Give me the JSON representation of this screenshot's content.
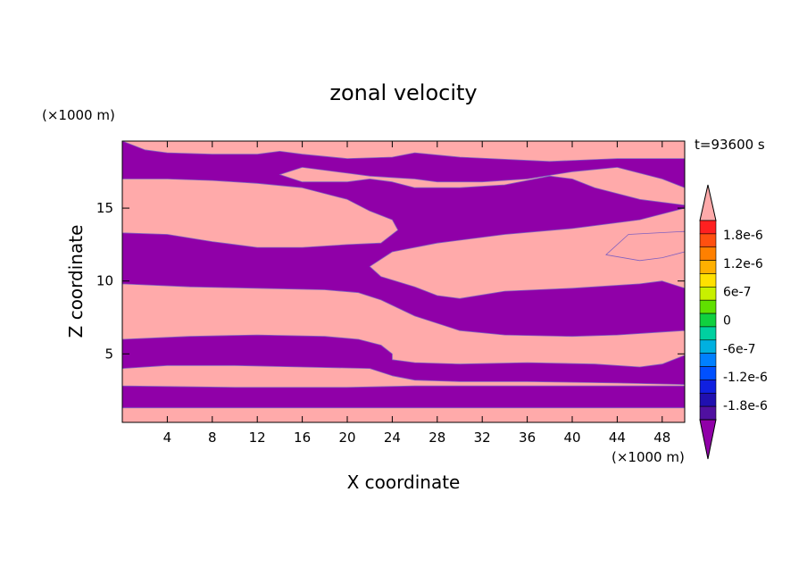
{
  "chart_data": {
    "type": "heatmap",
    "title": "zonal velocity",
    "xlabel": "X coordinate",
    "ylabel": "Z coordinate",
    "x_unit": "(×1000 m)",
    "y_unit": "(×1000 m)",
    "time_label": "t=93600 s",
    "xlim": [
      0,
      50
    ],
    "ylim": [
      0.3,
      19.6
    ],
    "x_ticks": [
      4,
      8,
      12,
      16,
      20,
      24,
      28,
      32,
      36,
      40,
      44,
      48
    ],
    "y_ticks": [
      5,
      10,
      15
    ],
    "colorbar": {
      "labels": [
        "1.8e-6",
        "1.2e-6",
        "6e-7",
        "0",
        "-6e-7",
        "-1.2e-6",
        "-1.8e-6"
      ],
      "label_values": [
        1.8e-06,
        1.2e-06,
        6e-07,
        0,
        -6e-07,
        -1.2e-06,
        -1.8e-06
      ],
      "levels_top_to_bottom": [
        "#ff2020",
        "#ff5010",
        "#ff8000",
        "#ffb000",
        "#ffe000",
        "#c8f000",
        "#60e000",
        "#10d040",
        "#00d0a0",
        "#00b0e0",
        "#0080ff",
        "#0050ff",
        "#1020e0",
        "#2010b0",
        "#5010a0"
      ],
      "over_color": "#ffaaaa",
      "under_color": "#9000a8"
    },
    "colors": {
      "positive_region": "#ffaaaa",
      "negative_region": "#9000a8"
    },
    "positive_bands": [
      {
        "top": [
          [
            0,
            1.3
          ],
          [
            50,
            1.3
          ]
        ],
        "bottom": [
          [
            0,
            0.3
          ],
          [
            50,
            0.3
          ]
        ]
      },
      {
        "top": [
          [
            0,
            4.0
          ],
          [
            4,
            4.2
          ],
          [
            10,
            4.2
          ],
          [
            16,
            4.1
          ],
          [
            22,
            4.0
          ],
          [
            24,
            3.5
          ],
          [
            26,
            3.2
          ],
          [
            30,
            3.1
          ],
          [
            36,
            3.1
          ],
          [
            44,
            3.0
          ],
          [
            50,
            2.9
          ]
        ],
        "bottom": [
          [
            0,
            2.8
          ],
          [
            10,
            2.7
          ],
          [
            20,
            2.7
          ],
          [
            26,
            2.8
          ],
          [
            34,
            2.8
          ],
          [
            44,
            2.8
          ],
          [
            50,
            2.8
          ]
        ]
      },
      {
        "top": [
          [
            0,
            9.8
          ],
          [
            6,
            9.6
          ],
          [
            12,
            9.5
          ],
          [
            18,
            9.4
          ],
          [
            21,
            9.2
          ],
          [
            23,
            8.7
          ],
          [
            26,
            7.6
          ],
          [
            30,
            6.6
          ],
          [
            34,
            6.3
          ],
          [
            40,
            6.2
          ],
          [
            44,
            6.3
          ],
          [
            48,
            6.5
          ],
          [
            50,
            6.6
          ]
        ],
        "bottom": [
          [
            0,
            6.0
          ],
          [
            6,
            6.2
          ],
          [
            12,
            6.3
          ],
          [
            18,
            6.2
          ],
          [
            21,
            6.0
          ],
          [
            23,
            5.6
          ],
          [
            24,
            5.0
          ],
          [
            24,
            4.6
          ],
          [
            26,
            4.4
          ],
          [
            30,
            4.3
          ],
          [
            36,
            4.4
          ],
          [
            42,
            4.3
          ],
          [
            46,
            4.1
          ],
          [
            48,
            4.3
          ],
          [
            50,
            4.9
          ]
        ]
      },
      {
        "top": [
          [
            0,
            17.0
          ],
          [
            4,
            17.0
          ],
          [
            8,
            16.9
          ],
          [
            12,
            16.7
          ],
          [
            16,
            16.4
          ],
          [
            20,
            15.6
          ],
          [
            22,
            14.8
          ],
          [
            24,
            14.2
          ],
          [
            24.5,
            13.5
          ],
          [
            23,
            12.6
          ],
          [
            20,
            12.5
          ],
          [
            16,
            12.3
          ],
          [
            12,
            12.3
          ],
          [
            8,
            12.7
          ],
          [
            4,
            13.2
          ],
          [
            0,
            13.3
          ]
        ],
        "closed": true
      },
      {
        "top": [
          [
            22,
            11.0
          ],
          [
            24,
            12.0
          ],
          [
            28,
            12.6
          ],
          [
            34,
            13.2
          ],
          [
            40,
            13.6
          ],
          [
            46,
            14.2
          ],
          [
            50,
            15.0
          ],
          [
            50,
            9.5
          ],
          [
            48,
            10.0
          ],
          [
            46,
            9.8
          ],
          [
            40,
            9.5
          ],
          [
            34,
            9.3
          ],
          [
            30,
            8.8
          ],
          [
            28,
            9.0
          ],
          [
            26,
            9.6
          ],
          [
            23,
            10.3
          ]
        ],
        "closed": true
      },
      {
        "top": [
          [
            0,
            19.6
          ],
          [
            50,
            19.6
          ],
          [
            50,
            18.4
          ],
          [
            44,
            18.4
          ],
          [
            38,
            18.2
          ],
          [
            30,
            18.5
          ],
          [
            26,
            18.8
          ],
          [
            24,
            18.5
          ],
          [
            20,
            18.4
          ],
          [
            16,
            18.7
          ],
          [
            14,
            18.9
          ],
          [
            12,
            18.7
          ],
          [
            8,
            18.7
          ],
          [
            4,
            18.8
          ],
          [
            2,
            19.0
          ],
          [
            0,
            19.6
          ]
        ],
        "closed": true
      },
      {
        "top": [
          [
            14,
            17.3
          ],
          [
            16,
            17.8
          ],
          [
            18,
            17.6
          ],
          [
            20,
            17.4
          ],
          [
            22,
            17.2
          ],
          [
            24,
            17.1
          ],
          [
            26,
            17.0
          ],
          [
            28,
            16.8
          ],
          [
            32,
            16.8
          ],
          [
            36,
            17.0
          ],
          [
            40,
            17.5
          ],
          [
            44,
            17.8
          ],
          [
            48,
            17.0
          ],
          [
            50,
            16.4
          ],
          [
            50,
            15.2
          ],
          [
            46,
            15.6
          ],
          [
            42,
            16.4
          ],
          [
            40,
            17.0
          ],
          [
            38,
            17.2
          ],
          [
            34,
            16.6
          ],
          [
            30,
            16.4
          ],
          [
            26,
            16.4
          ],
          [
            24,
            16.8
          ],
          [
            22,
            17.0
          ],
          [
            20,
            16.8
          ],
          [
            16,
            16.8
          ]
        ],
        "closed": true
      },
      {
        "top": [
          [
            43,
            11.8
          ],
          [
            45,
            13.2
          ],
          [
            50,
            13.4
          ],
          [
            50,
            12.0
          ],
          [
            48,
            11.6
          ],
          [
            46,
            11.4
          ]
        ],
        "closed": true
      }
    ]
  }
}
